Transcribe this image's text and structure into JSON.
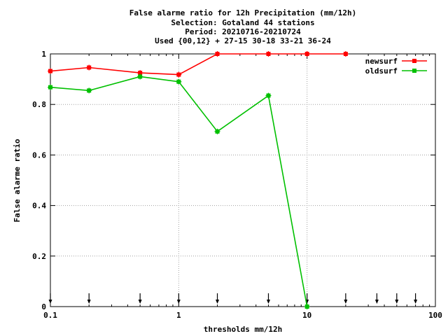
{
  "chart_data": {
    "type": "line",
    "title_lines": [
      "False alarme ratio  for 12h Precipitation (mm/12h)",
      "Selection: Gotaland     44 stations",
      "Period: 20210716-20210724",
      "Used {00,12} + 27-15 30-18 33-21 36-24"
    ],
    "xlabel": "thresholds mm/12h",
    "ylabel": "False alarme ratio",
    "xscale": "log",
    "xlim": [
      0.1,
      100
    ],
    "ylim": [
      0,
      1
    ],
    "grid": true,
    "legend_position": "top-right",
    "x_ticks": [
      {
        "value": 0.1,
        "label": "0.1"
      },
      {
        "value": 1,
        "label": "1"
      },
      {
        "value": 10,
        "label": "10"
      },
      {
        "value": 100,
        "label": "100"
      }
    ],
    "y_ticks": [
      {
        "value": 0,
        "label": "0"
      },
      {
        "value": 0.2,
        "label": "0.2"
      },
      {
        "value": 0.4,
        "label": "0.4"
      },
      {
        "value": 0.6,
        "label": "0.6"
      },
      {
        "value": 0.8,
        "label": "0.8"
      },
      {
        "value": 1,
        "label": "1"
      }
    ],
    "threshold_markers": [
      0.1,
      0.2,
      0.5,
      1,
      2,
      5,
      10,
      20,
      35,
      50,
      70
    ],
    "series": [
      {
        "name": "newsurf",
        "color": "#ff0000",
        "x": [
          0.1,
          0.2,
          0.5,
          1,
          2,
          5,
          10,
          20
        ],
        "y": [
          0.932,
          0.946,
          0.925,
          0.918,
          1.0,
          1.0,
          1.0,
          1.0
        ]
      },
      {
        "name": "oldsurf",
        "color": "#00c000",
        "x": [
          0.1,
          0.2,
          0.5,
          1,
          2,
          5,
          10
        ],
        "y": [
          0.868,
          0.855,
          0.91,
          0.89,
          0.693,
          0.835,
          0.0
        ]
      }
    ]
  }
}
